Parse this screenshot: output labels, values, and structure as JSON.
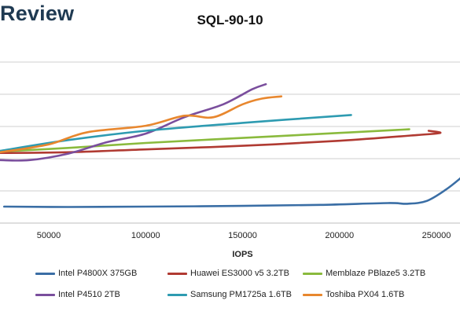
{
  "brand": "Review",
  "chart_data": {
    "type": "line",
    "title": "SQL-90-10",
    "xlabel": "IOPS",
    "ylabel": "",
    "xlim": [
      25000,
      263000
    ],
    "ylim": [
      0,
      270
    ],
    "x_ticks": [
      50000,
      100000,
      150000,
      200000,
      250000
    ],
    "x_tick_labels": [
      "50000",
      "100000",
      "150000",
      "200000",
      "250000"
    ],
    "y_gridlines": [
      45,
      90,
      135,
      180,
      225
    ],
    "grid": true,
    "legend_position": "bottom",
    "series": [
      {
        "name": "Intel P4800X 375GB",
        "color": "#3a6ea5",
        "points": [
          [
            27000,
            23
          ],
          [
            60000,
            22.5
          ],
          [
            100000,
            23
          ],
          [
            150000,
            24
          ],
          [
            190000,
            25.5
          ],
          [
            225000,
            28
          ],
          [
            235000,
            27
          ],
          [
            245000,
            31
          ],
          [
            255000,
            47
          ],
          [
            263000,
            64
          ]
        ]
      },
      {
        "name": "Huawei ES3000 v5 3.2TB",
        "color": "#b03a32",
        "points": [
          [
            25000,
            98
          ],
          [
            60000,
            99
          ],
          [
            100000,
            103
          ],
          [
            150000,
            108
          ],
          [
            200000,
            115
          ],
          [
            240000,
            123
          ],
          [
            252000,
            126
          ],
          [
            246000,
            129
          ]
        ]
      },
      {
        "name": "Memblaze PBlaze5 3.2TB",
        "color": "#8aba3d",
        "points": [
          [
            25000,
            100
          ],
          [
            60000,
            105
          ],
          [
            100000,
            112
          ],
          [
            150000,
            119
          ],
          [
            200000,
            126
          ],
          [
            236000,
            131
          ]
        ]
      },
      {
        "name": "Intel P4510 2TB",
        "color": "#7a4e9d",
        "points": [
          [
            25000,
            88
          ],
          [
            40000,
            88
          ],
          [
            60000,
            97
          ],
          [
            80000,
            113
          ],
          [
            100000,
            125
          ],
          [
            120000,
            148
          ],
          [
            140000,
            166
          ],
          [
            155000,
            187
          ],
          [
            162000,
            194
          ]
        ]
      },
      {
        "name": "Samsung PM1725a 1.6TB",
        "color": "#2e9bb1",
        "points": [
          [
            25000,
            101
          ],
          [
            60000,
            116
          ],
          [
            100000,
            129
          ],
          [
            150000,
            140
          ],
          [
            206000,
            151
          ]
        ]
      },
      {
        "name": "Toshiba PX04 1.6TB",
        "color": "#e8872e",
        "points": [
          [
            25000,
            99
          ],
          [
            50000,
            110
          ],
          [
            70000,
            127
          ],
          [
            100000,
            136
          ],
          [
            120000,
            150
          ],
          [
            135000,
            148
          ],
          [
            150000,
            166
          ],
          [
            160000,
            174
          ],
          [
            170000,
            177
          ]
        ]
      }
    ]
  }
}
